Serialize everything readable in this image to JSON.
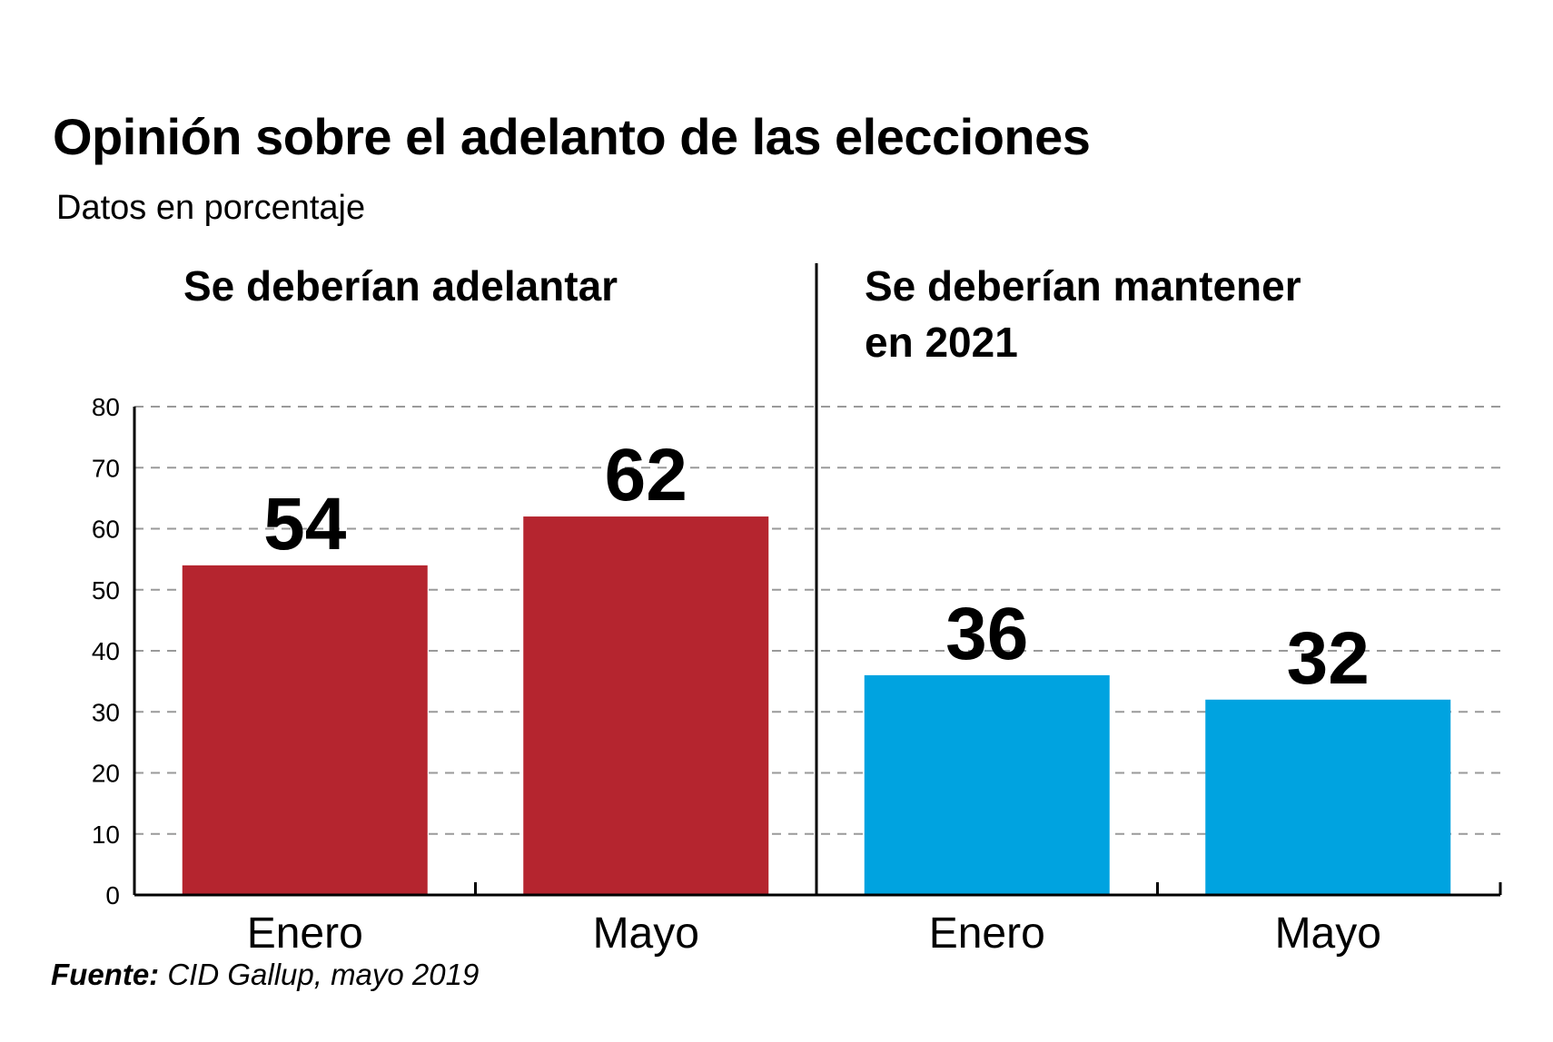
{
  "title": "Opinión sobre el adelanto de las elecciones",
  "subtitle": "Datos en porcentaje",
  "source": {
    "label": "Fuente:",
    "text": "CID Gallup, mayo 2019"
  },
  "colors": {
    "adelantar": "#b5252f",
    "mantener": "#00a3e0"
  },
  "chart_data": [
    {
      "type": "bar",
      "title": "Se deberían adelantar",
      "title_lines": [
        "Se deberían adelantar"
      ],
      "categories": [
        "Enero",
        "Mayo"
      ],
      "values": [
        54,
        62
      ],
      "color": "#b5252f",
      "ylim": [
        0,
        80
      ],
      "yticks": [
        0,
        10,
        20,
        30,
        40,
        50,
        60,
        70,
        80
      ],
      "grid": true
    },
    {
      "type": "bar",
      "title": "Se deberían mantener en 2021",
      "title_lines": [
        "Se deberían mantener",
        "en 2021"
      ],
      "categories": [
        "Enero",
        "Mayo"
      ],
      "values": [
        36,
        32
      ],
      "color": "#00a3e0",
      "ylim": [
        0,
        80
      ],
      "yticks": [
        0,
        10,
        20,
        30,
        40,
        50,
        60,
        70,
        80
      ],
      "grid": true
    }
  ]
}
